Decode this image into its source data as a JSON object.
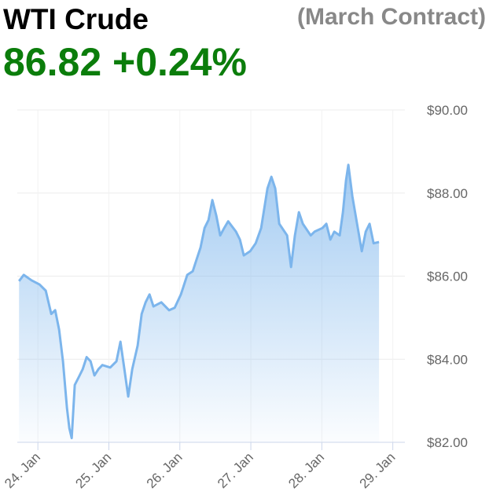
{
  "chart_data": {
    "type": "area",
    "title": "WTI Crude",
    "subtitle": "(March Contract)",
    "current_value": "86.82",
    "change": "+0.24%",
    "x": [
      23.734,
      23.801,
      23.911,
      24.022,
      24.111,
      24.188,
      24.244,
      24.299,
      24.354,
      24.41,
      24.443,
      24.476,
      24.52,
      24.576,
      24.631,
      24.687,
      24.742,
      24.797,
      24.853,
      24.908,
      25.019,
      25.107,
      25.163,
      25.218,
      25.273,
      25.329,
      25.406,
      25.462,
      25.517,
      25.573,
      25.628,
      25.739,
      25.849,
      25.927,
      26.015,
      26.104,
      26.182,
      26.237,
      26.292,
      26.348,
      26.403,
      26.458,
      26.514,
      26.569,
      26.625,
      26.68,
      26.791,
      26.846,
      26.901,
      26.99,
      27.068,
      27.145,
      27.234,
      27.289,
      27.344,
      27.4,
      27.511,
      27.566,
      27.621,
      27.677,
      27.732,
      27.843,
      27.898,
      28.009,
      28.064,
      28.12,
      28.175,
      28.252,
      28.297,
      28.341,
      28.374,
      28.43,
      28.507,
      28.563,
      28.618,
      28.673,
      28.729,
      28.806
    ],
    "series": [
      {
        "name": "WTI Crude",
        "color": "#7cb5ec",
        "values": [
          85.88,
          86.03,
          85.9,
          85.8,
          85.65,
          85.09,
          85.18,
          84.71,
          83.95,
          82.82,
          82.34,
          82.1,
          83.38,
          83.57,
          83.76,
          84.05,
          83.95,
          83.61,
          83.76,
          83.86,
          83.8,
          83.95,
          84.42,
          83.76,
          83.1,
          83.76,
          84.33,
          85.09,
          85.37,
          85.56,
          85.27,
          85.37,
          85.18,
          85.24,
          85.56,
          86.03,
          86.12,
          86.41,
          86.69,
          87.16,
          87.35,
          87.83,
          87.45,
          86.98,
          87.16,
          87.32,
          87.07,
          86.88,
          86.5,
          86.6,
          86.79,
          87.16,
          88.11,
          88.39,
          88.11,
          87.26,
          86.98,
          86.22,
          86.98,
          87.54,
          87.26,
          86.98,
          87.07,
          87.16,
          87.26,
          86.88,
          87.07,
          86.98,
          87.54,
          88.3,
          88.68,
          87.92,
          87.16,
          86.6,
          87.07,
          87.26,
          86.79,
          86.82
        ]
      }
    ],
    "xlim": [
      23.71,
      29.17
    ],
    "ylim": [
      82,
      90
    ],
    "xticks": [
      {
        "value": 24,
        "label": "24. Jan"
      },
      {
        "value": 25,
        "label": "25. Jan"
      },
      {
        "value": 26,
        "label": "26. Jan"
      },
      {
        "value": 27,
        "label": "27. Jan"
      },
      {
        "value": 28,
        "label": "28. Jan"
      },
      {
        "value": 29,
        "label": "29. Jan"
      }
    ],
    "yticks": [
      {
        "value": 82,
        "label": "$82.00"
      },
      {
        "value": 84,
        "label": "$84.00"
      },
      {
        "value": 86,
        "label": "$86.00"
      },
      {
        "value": 88,
        "label": "$88.00"
      },
      {
        "value": 90,
        "label": "$90.00"
      }
    ],
    "grid": true
  }
}
